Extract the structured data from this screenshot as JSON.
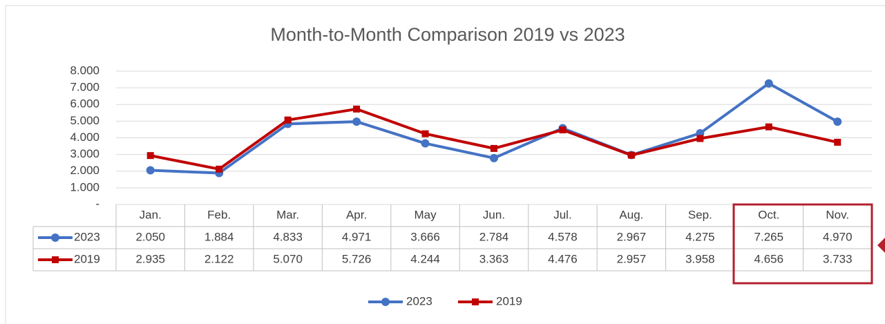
{
  "chart_data": {
    "type": "line",
    "title": "Month-to-Month Comparison 2019 vs 2023",
    "categories": [
      "Jan.",
      "Feb.",
      "Mar.",
      "Apr.",
      "May",
      "Jun.",
      "Jul.",
      "Aug.",
      "Sep.",
      "Oct.",
      "Nov."
    ],
    "series": [
      {
        "name": "2023",
        "color": "#4472c4",
        "marker": "circle",
        "values": [
          2050,
          1884,
          4833,
          4971,
          3666,
          2784,
          4578,
          2967,
          4275,
          7265,
          4970
        ],
        "value_labels": [
          "2.050",
          "1.884",
          "4.833",
          "4.971",
          "3.666",
          "2.784",
          "4.578",
          "2.967",
          "4.275",
          "7.265",
          "4.970"
        ]
      },
      {
        "name": "2019",
        "color": "#c00000",
        "marker": "square",
        "values": [
          2935,
          2122,
          5070,
          5726,
          4244,
          3363,
          4476,
          2957,
          3958,
          4656,
          3733
        ],
        "value_labels": [
          "2.935",
          "2.122",
          "5.070",
          "5.726",
          "4.244",
          "3.363",
          "4.476",
          "2.957",
          "3.958",
          "4.656",
          "3.733"
        ]
      }
    ],
    "ylim": [
      0,
      8000
    ],
    "yticks": [
      {
        "value": 0,
        "label": "-"
      },
      {
        "value": 1000,
        "label": "1.000"
      },
      {
        "value": 2000,
        "label": "2.000"
      },
      {
        "value": 3000,
        "label": "3.000"
      },
      {
        "value": 4000,
        "label": "4.000"
      },
      {
        "value": 5000,
        "label": "5.000"
      },
      {
        "value": 6000,
        "label": "6.000"
      },
      {
        "value": 7000,
        "label": "7.000"
      },
      {
        "value": 8000,
        "label": "8.000"
      }
    ],
    "grid": true,
    "legend": "bottom"
  }
}
